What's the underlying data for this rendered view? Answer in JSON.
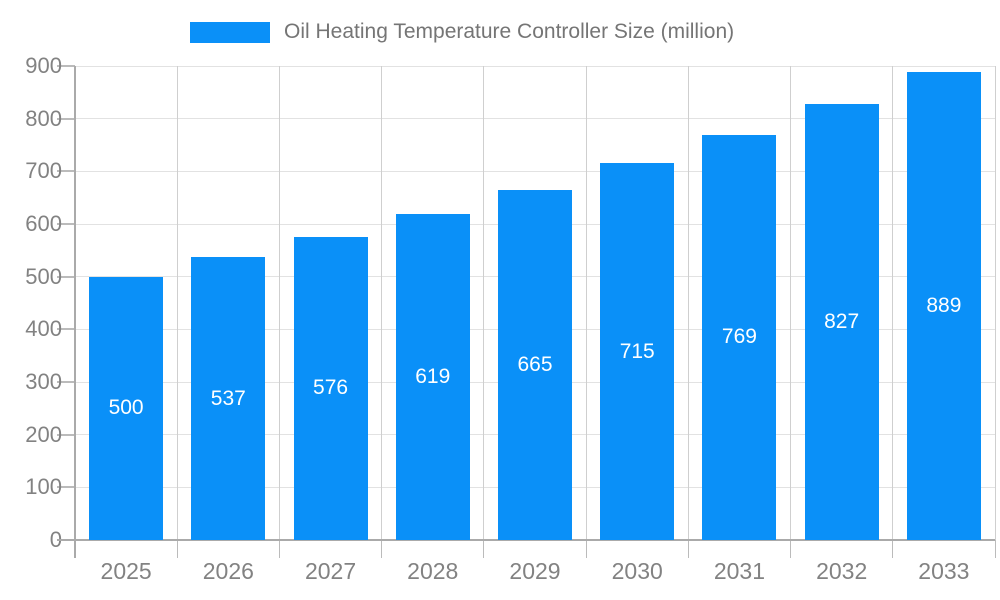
{
  "legend": {
    "label": "Oil Heating Temperature Controller Size (million)"
  },
  "chart_data": {
    "type": "bar",
    "title": "Oil Heating Temperature Controller Size (million)",
    "series_name": "Oil Heating Temperature Controller Size (million)",
    "categories": [
      "2025",
      "2026",
      "2027",
      "2028",
      "2029",
      "2030",
      "2031",
      "2032",
      "2033"
    ],
    "values": [
      500,
      537,
      576,
      619,
      665,
      715,
      769,
      827,
      889
    ],
    "value_labels": [
      "500",
      "537",
      "576",
      "619",
      "665",
      "715",
      "769",
      "827",
      "889"
    ],
    "xlabel": "",
    "ylabel": "",
    "ylim": [
      0,
      900
    ],
    "ytick_step": 100,
    "ytick_labels": [
      "0",
      "100",
      "200",
      "300",
      "400",
      "500",
      "600",
      "700",
      "800",
      "900"
    ],
    "grid": true,
    "legend_position": "top",
    "value_label_position": "center-inside"
  },
  "colors": {
    "bar": "#0a90f8",
    "value_label": "#ffffff",
    "axis_text": "#828282",
    "legend_text": "#757575",
    "axis_line": "#aaaaaa",
    "grid_h": "#e2e2e2",
    "grid_v": "#cfcfcf",
    "tick": "#bbbbbb",
    "background": "#ffffff"
  }
}
